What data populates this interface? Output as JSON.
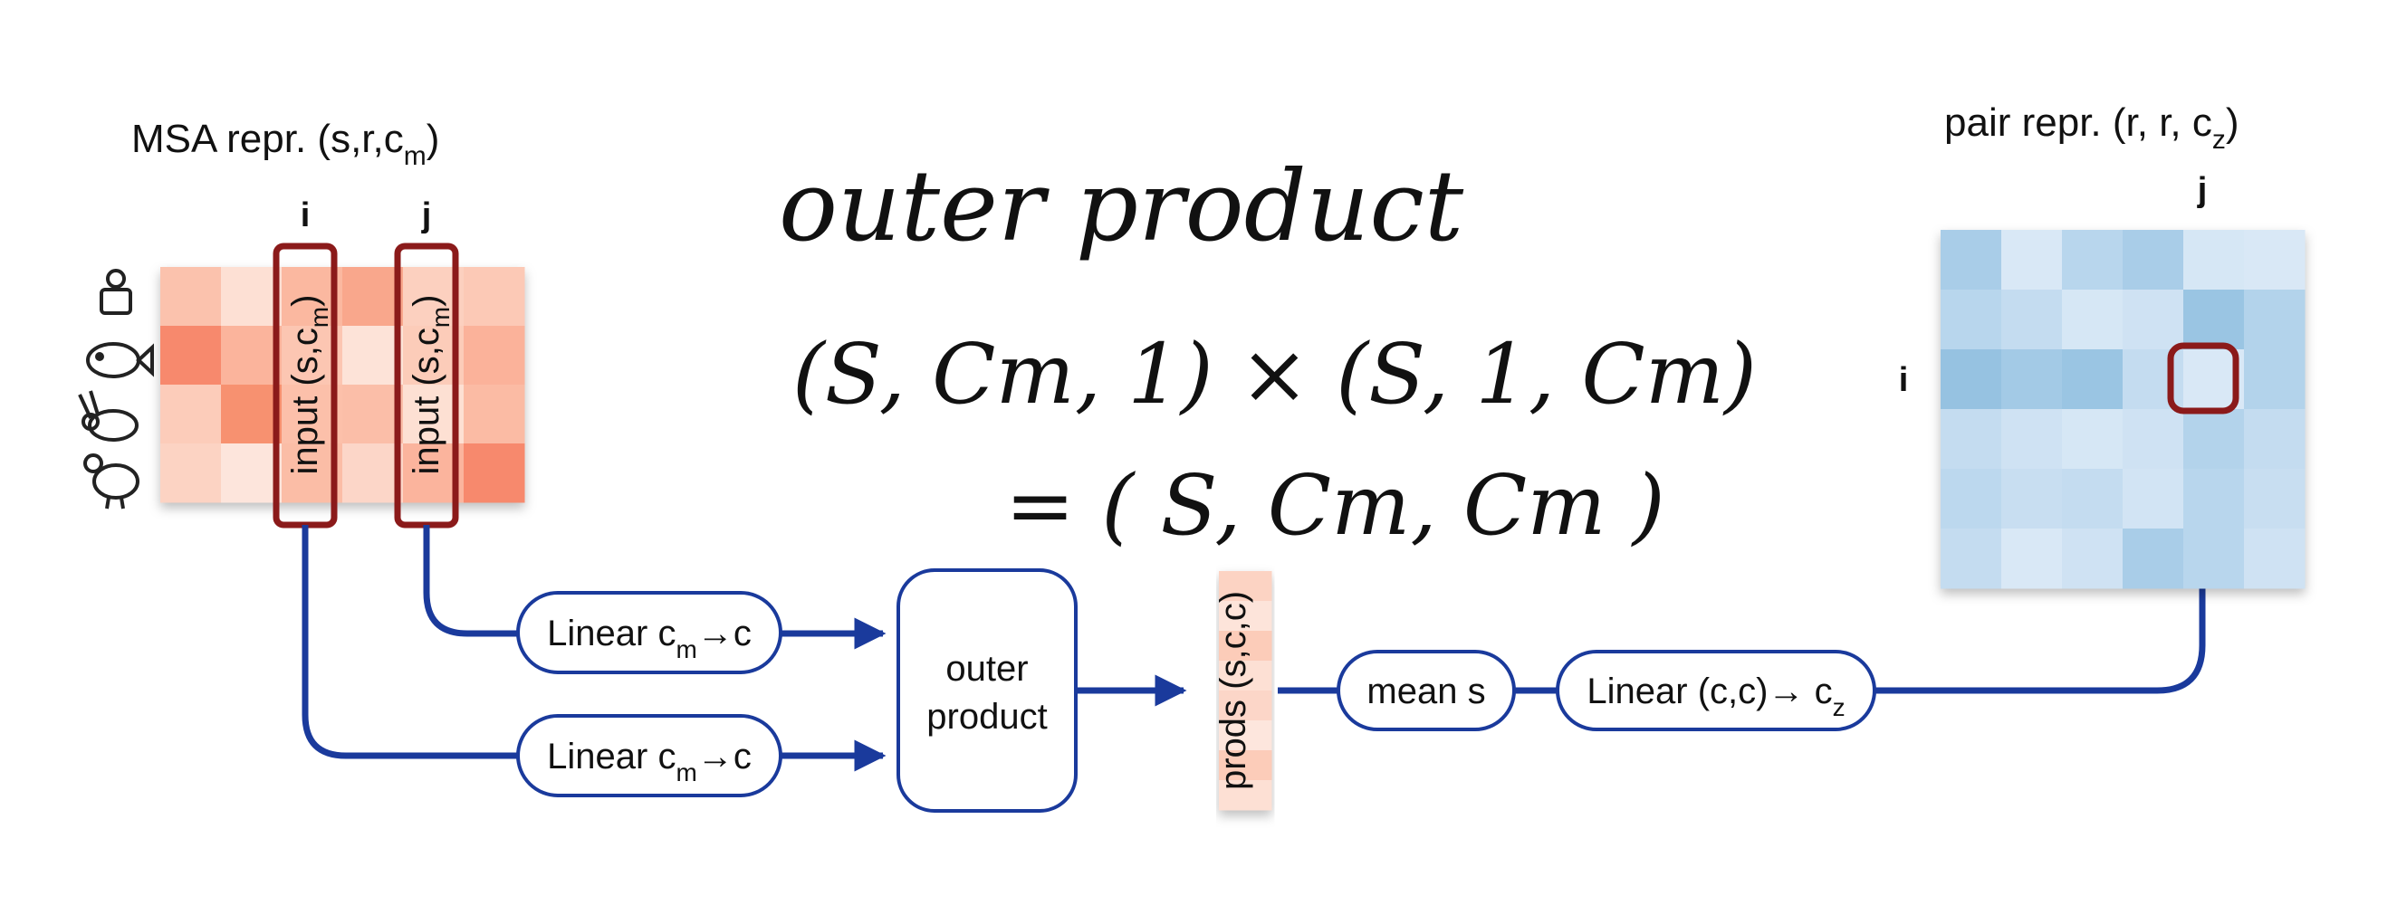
{
  "msa": {
    "title_main": "MSA repr. (s,r,c",
    "title_sub": "m",
    "title_close": ")",
    "col_i": "i",
    "col_j": "j",
    "input_main": "input (s,c",
    "input_sub": "m",
    "input_close": ")",
    "species_icons": [
      "person-icon",
      "fish-icon",
      "rabbit-icon",
      "chicken-icon"
    ],
    "heatmap_color": "#f4846a"
  },
  "handwriting": {
    "line1": "outer product",
    "line2": "(S, Cm, 1) × (S, 1, Cm)",
    "line3": "= ( S, Cm, Cm )"
  },
  "linear1": {
    "main": "Linear c",
    "sub": "m",
    "tail": "→c"
  },
  "linear2": {
    "main": "Linear c",
    "sub": "m",
    "tail": "→c"
  },
  "outer_box": {
    "line1": "outer",
    "line2": "product"
  },
  "prods": {
    "label": "prods (s,c,c)"
  },
  "mean_box": {
    "label": "mean s"
  },
  "linear3": {
    "main": "Linear (c,c)→ c",
    "sub": "z"
  },
  "pair": {
    "title_main": "pair repr. (r, r, c",
    "title_sub": "z",
    "title_close": ")",
    "row_i": "i",
    "col_j": "j",
    "heatmap_color": "#8fbfe0"
  },
  "colors": {
    "arrow": "#1a3a9c",
    "highlight": "#8b1a1a",
    "box_border": "#1a3a9c"
  }
}
